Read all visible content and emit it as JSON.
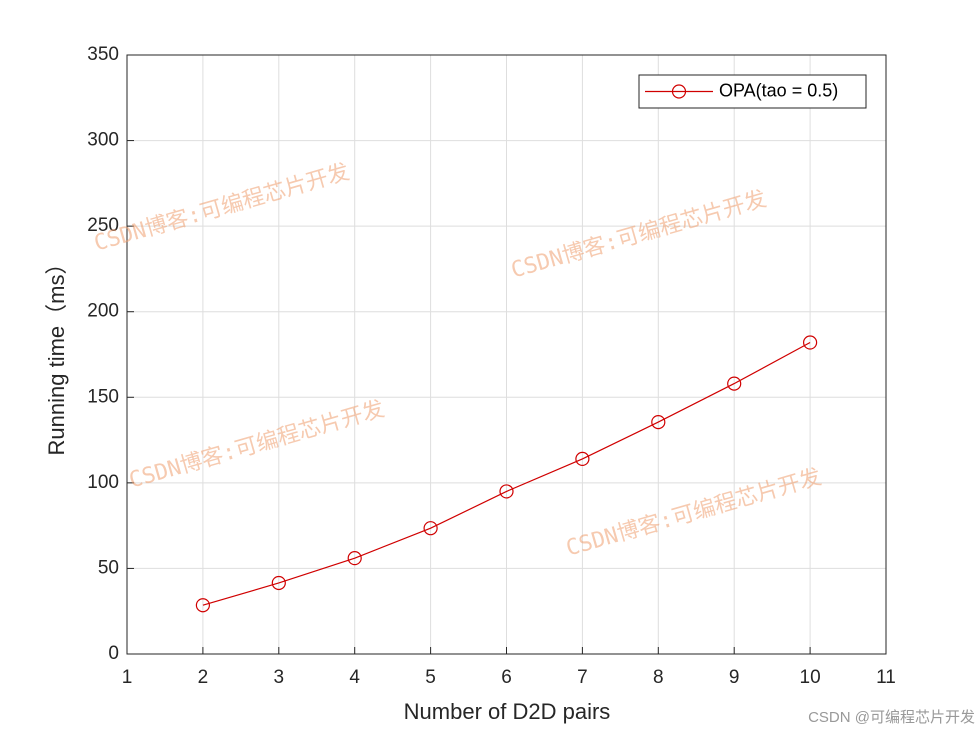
{
  "chart_data": {
    "type": "line",
    "x_label": "Number of D2D pairs",
    "y_label": "Running time（ms）",
    "x": [
      2,
      3,
      4,
      5,
      6,
      7,
      8,
      9,
      10
    ],
    "series": [
      {
        "name": "OPA(tao = 0.5)",
        "color": "#d00000",
        "marker": "circle",
        "values": [
          28.5,
          41.5,
          56,
          73.5,
          95,
          114,
          135.5,
          158,
          182
        ]
      }
    ],
    "xlim": [
      1,
      11
    ],
    "xticks": [
      1,
      2,
      3,
      4,
      5,
      6,
      7,
      8,
      9,
      10,
      11
    ],
    "ylim": [
      0,
      350
    ],
    "yticks": [
      0,
      50,
      100,
      150,
      200,
      250,
      300,
      350
    ],
    "grid": true,
    "legend": "upper right",
    "watermarks": [
      "CSDN博客:可编程芯片开发",
      "CSDN博客:可编程芯片开发",
      "CSDN博客:可编程芯片开发",
      "CSDN博客:可编程芯片开发"
    ],
    "footer": "CSDN @可编程芯片开发"
  }
}
